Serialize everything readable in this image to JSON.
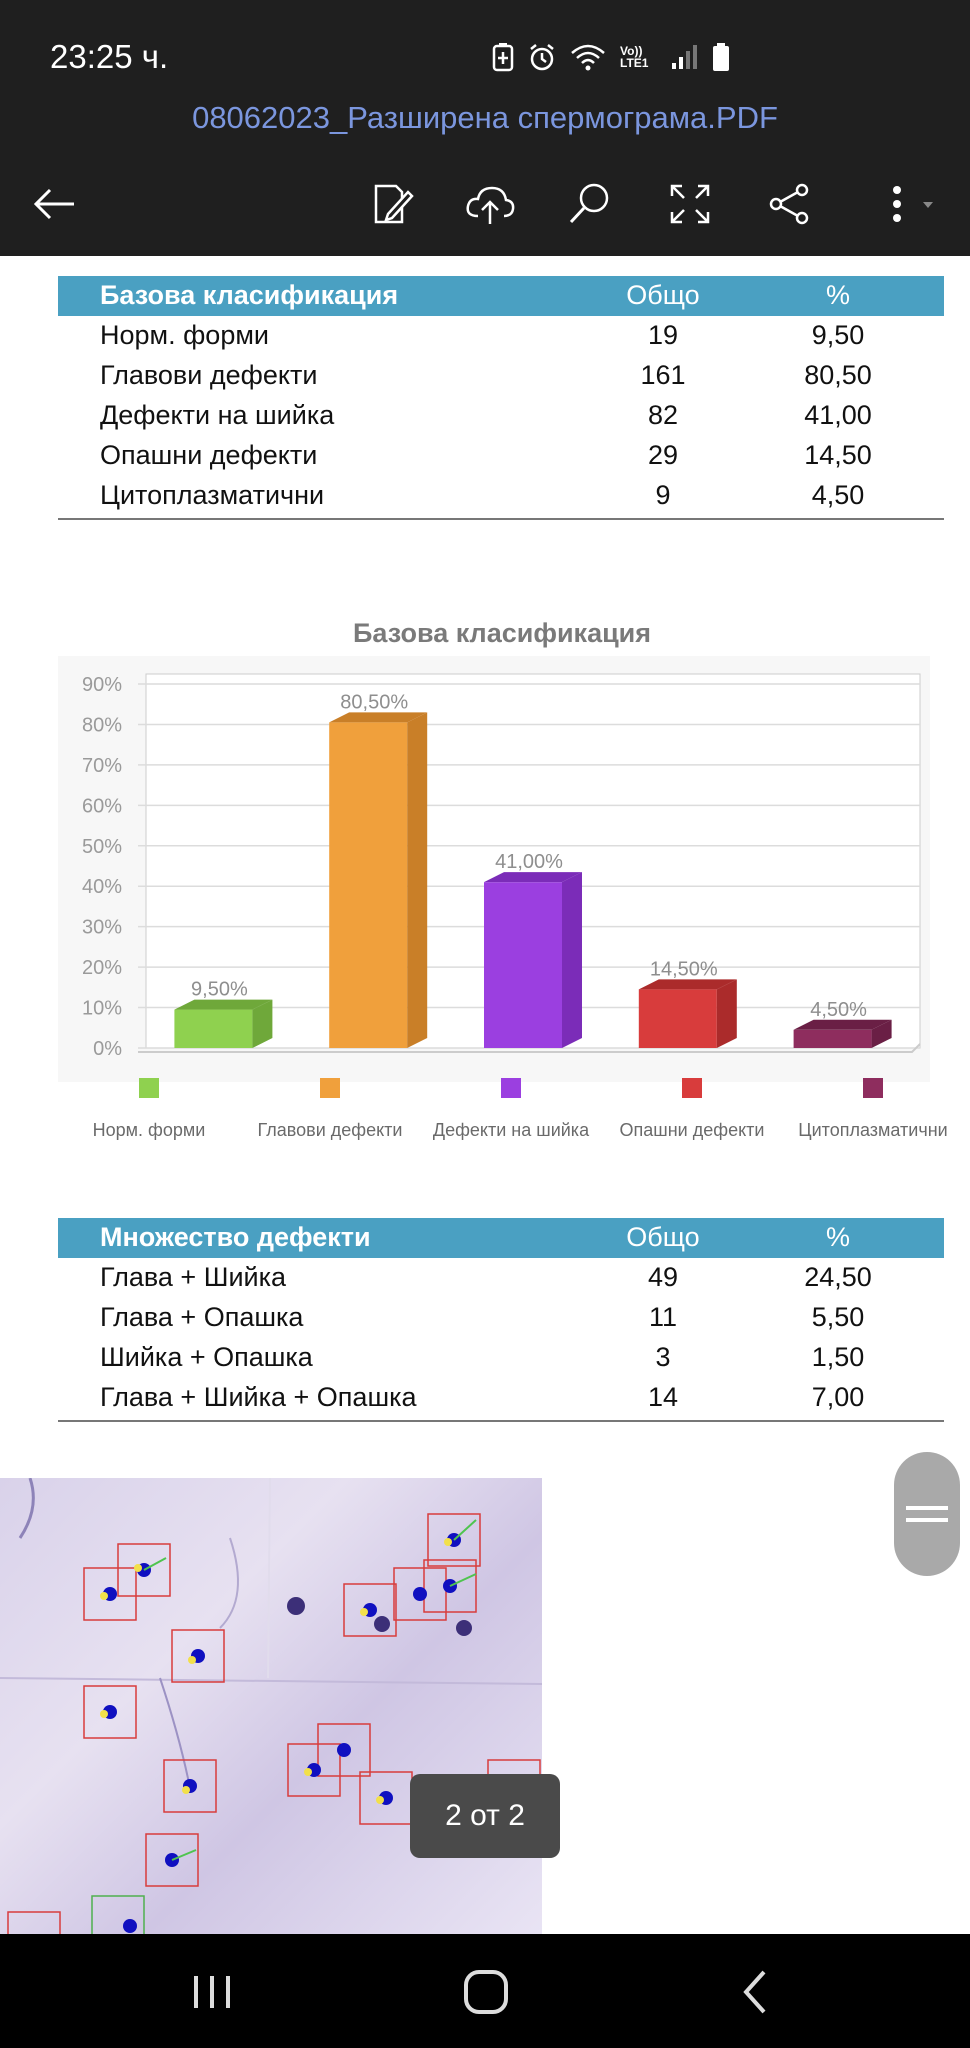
{
  "status_bar": {
    "time": "23:25 ч.",
    "network_label": "Vo)) LTE1"
  },
  "app_bar": {
    "title": "08062023_Разширена спермограма.PDF",
    "icons": [
      "back-arrow-icon",
      "edit-icon",
      "cloud-upload-icon",
      "search-icon",
      "fullscreen-icon",
      "share-icon",
      "more-icon"
    ]
  },
  "table_basic": {
    "headers": [
      "Базова класификация",
      "Общо",
      "%"
    ],
    "rows": [
      {
        "name": "Норм. форми",
        "total": "19",
        "pct": "9,50"
      },
      {
        "name": "Главови дефекти",
        "total": "161",
        "pct": "80,50"
      },
      {
        "name": "Дефекти на шийка",
        "total": "82",
        "pct": "41,00"
      },
      {
        "name": "Опашни дефекти",
        "total": "29",
        "pct": "14,50"
      },
      {
        "name": "Цитоплазматични",
        "total": "9",
        "pct": "4,50"
      }
    ]
  },
  "chart_data": {
    "type": "bar",
    "title": "Базова класификация",
    "categories": [
      "Норм. форми",
      "Главови дефекти",
      "Дефекти на шийка",
      "Опашни дефекти",
      "Цитоплазматични"
    ],
    "values": [
      9.5,
      80.5,
      41.0,
      14.5,
      4.5
    ],
    "data_labels": [
      "9,50%",
      "80,50%",
      "41,00%",
      "14,50%",
      "4,50%"
    ],
    "colors": [
      "#8fd14f",
      "#f0a03c",
      "#9b3fe0",
      "#d83c3c",
      "#8e2d5e"
    ],
    "side_colors": [
      "#6fa83a",
      "#c97f28",
      "#7b2cb8",
      "#ab2b2b",
      "#6a1f45"
    ],
    "ylim": [
      0,
      90
    ],
    "yticks": [
      "0%",
      "10%",
      "20%",
      "30%",
      "40%",
      "50%",
      "60%",
      "70%",
      "80%",
      "90%"
    ],
    "grid": true,
    "legend_position": "bottom"
  },
  "table_multi": {
    "headers": [
      "Множество дефекти",
      "Общо",
      "%"
    ],
    "rows": [
      {
        "name": "Глава + Шийка",
        "total": "49",
        "pct": "24,50"
      },
      {
        "name": "Глава + Опашка",
        "total": "11",
        "pct": "5,50"
      },
      {
        "name": "Шийка + Опашка",
        "total": "3",
        "pct": "1,50"
      },
      {
        "name": "Глава + Шийка + Опашка",
        "total": "14",
        "pct": "7,00"
      }
    ]
  },
  "page_indicator": "2 от 2",
  "nav_bar": {
    "icons": [
      "recent-apps-icon",
      "home-icon",
      "back-icon"
    ]
  }
}
